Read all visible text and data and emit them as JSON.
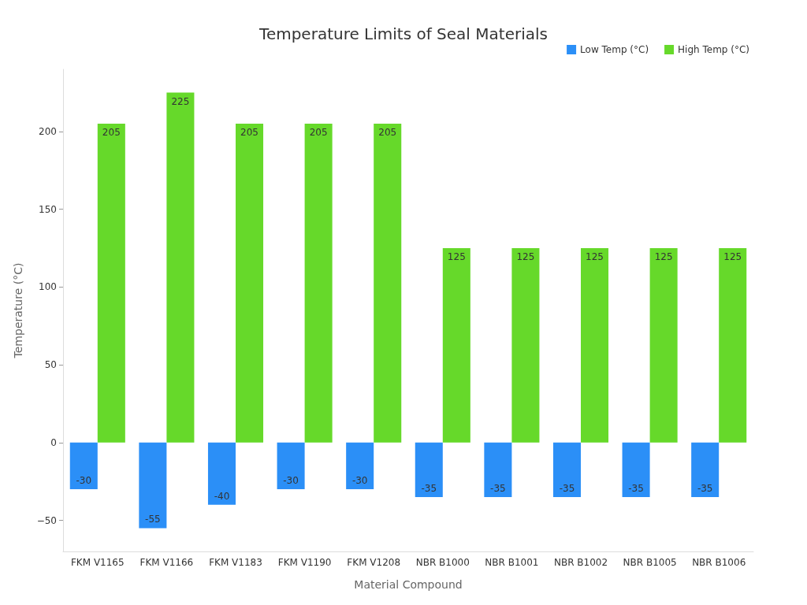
{
  "chart_data": {
    "type": "bar",
    "title": "Temperature Limits of Seal Materials",
    "xlabel": "Material Compound",
    "ylabel": "Temperature (°C)",
    "categories": [
      "FKM V1165",
      "FKM V1166",
      "FKM V1183",
      "FKM V1190",
      "FKM V1208",
      "NBR B1000",
      "NBR B1001",
      "NBR B1002",
      "NBR B1005",
      "NBR B1006"
    ],
    "series": [
      {
        "name": "Low Temp (°C)",
        "color": "#2b8ff7",
        "values": [
          -30,
          -55,
          -40,
          -30,
          -30,
          -35,
          -35,
          -35,
          -35,
          -35
        ]
      },
      {
        "name": "High Temp (°C)",
        "color": "#66d92a",
        "values": [
          205,
          225,
          205,
          205,
          205,
          125,
          125,
          125,
          125,
          125
        ]
      }
    ],
    "ylim": [
      -70,
      240
    ],
    "yticks": [
      {
        "value": -50,
        "label": "−50"
      },
      0,
      50,
      100,
      150,
      200
    ],
    "data_labels": true,
    "legend": "top right",
    "grid": false
  }
}
